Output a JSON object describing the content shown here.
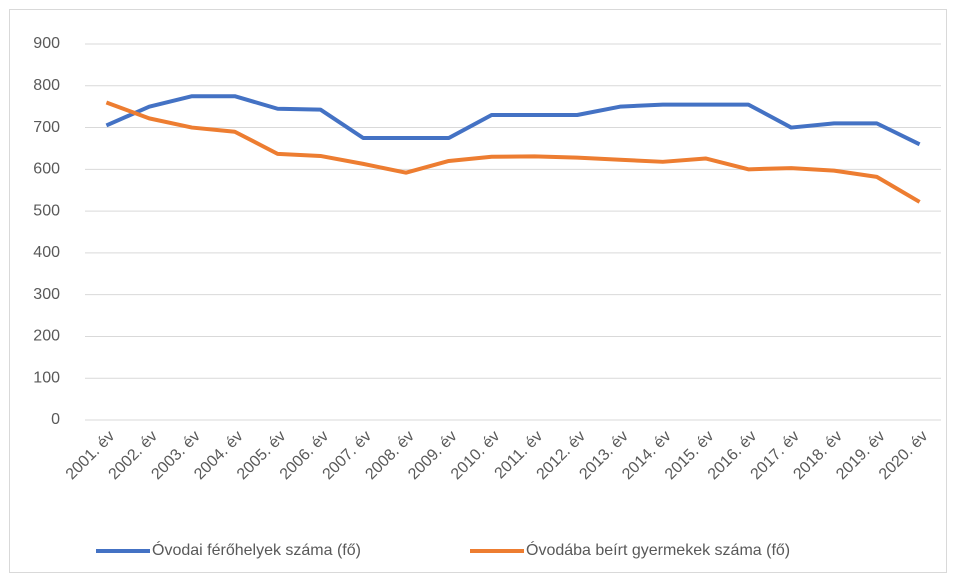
{
  "chart_data": {
    "type": "line",
    "categories": [
      "2001. év",
      "2002. év",
      "2003. év",
      "2004. év",
      "2005. év",
      "2006. év",
      "2007. év",
      "2008. év",
      "2009. év",
      "2010. év",
      "2011. év",
      "2012. év",
      "2013. év",
      "2014. év",
      "2015. év",
      "2016. év",
      "2017. év",
      "2018. év",
      "2019. év",
      "2020. év"
    ],
    "series": [
      {
        "name": "Óvodai férőhelyek száma (fő)",
        "color": "#4472c4",
        "values": [
          705,
          750,
          775,
          775,
          745,
          743,
          675,
          675,
          675,
          730,
          730,
          730,
          750,
          755,
          755,
          755,
          700,
          710,
          710,
          660
        ]
      },
      {
        "name": "Óvodába beírt gyermekek száma (fő)",
        "color": "#ed7d31",
        "values": [
          760,
          722,
          700,
          690,
          637,
          632,
          613,
          592,
          620,
          630,
          631,
          628,
          623,
          618,
          626,
          600,
          603,
          597,
          582,
          522
        ]
      }
    ],
    "ylim": [
      0,
      900
    ],
    "yticks": [
      0,
      100,
      200,
      300,
      400,
      500,
      600,
      700,
      800,
      900
    ],
    "grid": true,
    "legend": "bottom"
  }
}
